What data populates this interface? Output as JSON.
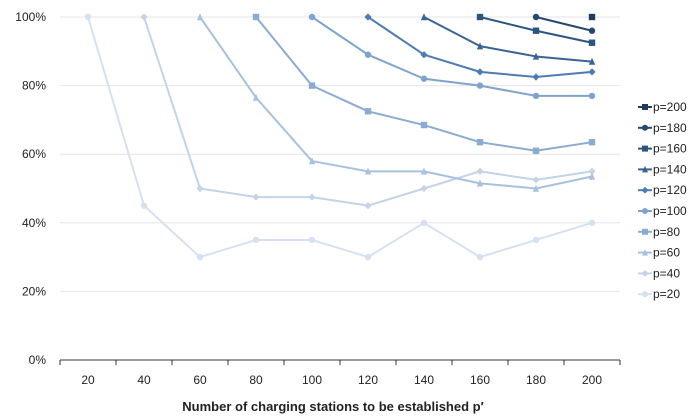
{
  "chart_data": {
    "type": "line",
    "title": "",
    "xlabel": "Number of charging stations to be established p′",
    "ylabel": "",
    "x": [
      20,
      40,
      60,
      80,
      100,
      120,
      140,
      160,
      180,
      200
    ],
    "ylim": [
      0,
      100
    ],
    "yticks": [
      0,
      20,
      40,
      60,
      80,
      100
    ],
    "ytick_suffix": "%",
    "grid": "horizontal",
    "legend_position": "right",
    "series": [
      {
        "name": "p=200",
        "color": "#1f3b5e",
        "marker": "square",
        "values": [
          null,
          null,
          null,
          null,
          null,
          null,
          null,
          null,
          null,
          100
        ]
      },
      {
        "name": "p=180",
        "color": "#27476f",
        "marker": "circle",
        "values": [
          null,
          null,
          null,
          null,
          null,
          null,
          null,
          null,
          100,
          96
        ]
      },
      {
        "name": "p=160",
        "color": "#2e5580",
        "marker": "square",
        "values": [
          null,
          null,
          null,
          null,
          null,
          null,
          null,
          100,
          96,
          92.5
        ]
      },
      {
        "name": "p=140",
        "color": "#3a6592",
        "marker": "triangle",
        "values": [
          null,
          null,
          null,
          null,
          null,
          null,
          100,
          91.5,
          88.5,
          87
        ]
      },
      {
        "name": "p=120",
        "color": "#4e7cb0",
        "marker": "diamond",
        "values": [
          null,
          null,
          null,
          null,
          null,
          100,
          89,
          84,
          82.5,
          84
        ]
      },
      {
        "name": "p=100",
        "color": "#7fa3cd",
        "marker": "circle",
        "values": [
          null,
          null,
          null,
          null,
          100,
          89,
          82,
          80,
          77,
          77
        ]
      },
      {
        "name": "p=80",
        "color": "#8cabd1",
        "marker": "square",
        "values": [
          null,
          null,
          null,
          100,
          80,
          72.5,
          68.5,
          63.5,
          61,
          63.5
        ]
      },
      {
        "name": "p=60",
        "color": "#a9c1df",
        "marker": "triangle",
        "values": [
          null,
          null,
          100,
          76.5,
          58,
          55,
          55,
          51.5,
          50,
          53.5
        ]
      },
      {
        "name": "p=40",
        "color": "#c3d3e8",
        "marker": "diamond",
        "values": [
          null,
          100,
          50,
          47.5,
          47.5,
          45,
          50,
          55,
          52.5,
          55
        ]
      },
      {
        "name": "p=20",
        "color": "#d6e1ef",
        "marker": "circle",
        "values": [
          100,
          45,
          30,
          35,
          35,
          30,
          40,
          30,
          35,
          40
        ]
      }
    ]
  }
}
